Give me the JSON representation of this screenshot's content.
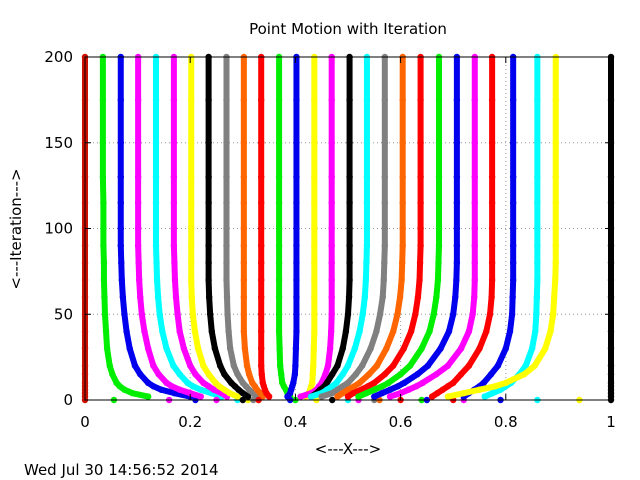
{
  "footer_timestamp": "Wed Jul 30 14:56:52 2014",
  "chart_data": {
    "type": "scatter",
    "title": "Point Motion with Iteration",
    "xlabel": "<---X--->",
    "ylabel": "<---Iteration--->",
    "xlim": [
      0,
      1
    ],
    "ylim": [
      0,
      200
    ],
    "x_ticks": [
      "0",
      "0.2",
      "0.4",
      "0.6",
      "0.8",
      "1"
    ],
    "y_ticks": [
      "0",
      "50",
      "100",
      "150",
      "200"
    ],
    "grid": true,
    "legend": "none",
    "iterations": [
      0,
      2,
      4,
      6,
      8,
      10,
      15,
      20,
      30,
      40,
      50,
      60,
      70,
      80,
      90,
      100,
      115,
      130,
      150,
      175,
      200
    ],
    "series": [
      {
        "color": "#cc1100",
        "x": [
          0.0,
          0.0,
          0.0,
          0.0,
          0.0,
          0.0,
          0.0,
          0.0,
          0.0,
          0.0,
          0.0,
          0.0,
          0.0,
          0.0,
          0.0,
          0.0,
          0.0,
          0.0,
          0.0,
          0.0,
          0.0
        ]
      },
      {
        "color": "#00ee00",
        "x": [
          0.055,
          0.12,
          0.09,
          0.075,
          0.066,
          0.06,
          0.052,
          0.047,
          0.042,
          0.04,
          0.038,
          0.037,
          0.036,
          0.036,
          0.035,
          0.035,
          0.035,
          0.034,
          0.034,
          0.034,
          0.034
        ]
      },
      {
        "color": "#0000ee",
        "x": [
          0.21,
          0.2,
          0.17,
          0.145,
          0.13,
          0.12,
          0.105,
          0.095,
          0.085,
          0.079,
          0.075,
          0.072,
          0.07,
          0.069,
          0.068,
          0.068,
          0.068,
          0.068,
          0.068,
          0.068,
          0.068
        ]
      },
      {
        "color": "#ff00ff",
        "x": [
          0.16,
          0.22,
          0.2,
          0.18,
          0.165,
          0.155,
          0.14,
          0.13,
          0.12,
          0.113,
          0.108,
          0.105,
          0.103,
          0.102,
          0.101,
          0.101,
          0.101,
          0.101,
          0.101,
          0.101,
          0.101
        ]
      },
      {
        "color": "#00ffff",
        "x": [
          0.29,
          0.26,
          0.24,
          0.22,
          0.205,
          0.195,
          0.18,
          0.168,
          0.155,
          0.147,
          0.142,
          0.139,
          0.137,
          0.136,
          0.135,
          0.135,
          0.135,
          0.135,
          0.135,
          0.135,
          0.135
        ]
      },
      {
        "color": "#ff00ff",
        "x": [
          0.25,
          0.27,
          0.26,
          0.245,
          0.235,
          0.225,
          0.21,
          0.2,
          0.188,
          0.18,
          0.176,
          0.173,
          0.171,
          0.17,
          0.169,
          0.169,
          0.169,
          0.169,
          0.169,
          0.169,
          0.169
        ]
      },
      {
        "color": "#ffff00",
        "x": [
          0.31,
          0.29,
          0.275,
          0.265,
          0.255,
          0.248,
          0.235,
          0.225,
          0.215,
          0.209,
          0.205,
          0.203,
          0.202,
          0.202,
          0.202,
          0.202,
          0.202,
          0.202,
          0.202,
          0.202,
          0.202
        ]
      },
      {
        "color": "#000000",
        "x": [
          0.3,
          0.31,
          0.3,
          0.292,
          0.285,
          0.278,
          0.265,
          0.257,
          0.247,
          0.241,
          0.238,
          0.236,
          0.235,
          0.235,
          0.235,
          0.235,
          0.235,
          0.235,
          0.235,
          0.235,
          0.235
        ]
      },
      {
        "color": "#808080",
        "x": [
          0.32,
          0.325,
          0.32,
          0.312,
          0.306,
          0.3,
          0.29,
          0.283,
          0.276,
          0.273,
          0.271,
          0.27,
          0.269,
          0.269,
          0.269,
          0.269,
          0.269,
          0.269,
          0.269,
          0.269,
          0.269
        ]
      },
      {
        "color": "#ff6600",
        "x": [
          0.33,
          0.338,
          0.333,
          0.327,
          0.323,
          0.318,
          0.312,
          0.308,
          0.304,
          0.302,
          0.302,
          0.302,
          0.302,
          0.302,
          0.302,
          0.302,
          0.302,
          0.302,
          0.302,
          0.302,
          0.302
        ]
      },
      {
        "color": "#ff0000",
        "x": [
          0.33,
          0.35,
          0.345,
          0.342,
          0.34,
          0.338,
          0.336,
          0.335,
          0.335,
          0.335,
          0.335,
          0.335,
          0.335,
          0.335,
          0.335,
          0.335,
          0.335,
          0.335,
          0.335,
          0.335,
          0.335
        ]
      },
      {
        "color": "#00ee00",
        "x": [
          0.4,
          0.39,
          0.385,
          0.382,
          0.378,
          0.375,
          0.373,
          0.371,
          0.37,
          0.369,
          0.369,
          0.369,
          0.369,
          0.369,
          0.369,
          0.369,
          0.369,
          0.369,
          0.369,
          0.369,
          0.369
        ]
      },
      {
        "color": "#0000ee",
        "x": [
          0.39,
          0.385,
          0.39,
          0.392,
          0.394,
          0.396,
          0.399,
          0.4,
          0.401,
          0.402,
          0.402,
          0.402,
          0.402,
          0.402,
          0.402,
          0.402,
          0.402,
          0.402,
          0.402,
          0.402,
          0.402
        ]
      },
      {
        "color": "#ffff00",
        "x": [
          0.44,
          0.42,
          0.425,
          0.428,
          0.43,
          0.432,
          0.433,
          0.434,
          0.435,
          0.436,
          0.436,
          0.436,
          0.436,
          0.436,
          0.436,
          0.436,
          0.436,
          0.436,
          0.436,
          0.436,
          0.436
        ]
      },
      {
        "color": "#ff00ff",
        "x": [
          0.52,
          0.41,
          0.43,
          0.44,
          0.445,
          0.45,
          0.457,
          0.462,
          0.466,
          0.468,
          0.469,
          0.469,
          0.469,
          0.469,
          0.469,
          0.469,
          0.469,
          0.469,
          0.469,
          0.469,
          0.469
        ]
      },
      {
        "color": "#000000",
        "x": [
          0.47,
          0.43,
          0.44,
          0.447,
          0.455,
          0.46,
          0.47,
          0.48,
          0.49,
          0.496,
          0.5,
          0.502,
          0.503,
          0.503,
          0.503,
          0.503,
          0.503,
          0.503,
          0.503,
          0.503,
          0.503
        ]
      },
      {
        "color": "#00ffff",
        "x": [
          0.5,
          0.43,
          0.45,
          0.46,
          0.47,
          0.478,
          0.49,
          0.5,
          0.513,
          0.522,
          0.528,
          0.532,
          0.534,
          0.535,
          0.536,
          0.536,
          0.536,
          0.536,
          0.536,
          0.536,
          0.536
        ]
      },
      {
        "color": "#808080",
        "x": [
          0.55,
          0.45,
          0.47,
          0.48,
          0.49,
          0.5,
          0.515,
          0.527,
          0.543,
          0.554,
          0.561,
          0.566,
          0.568,
          0.569,
          0.57,
          0.57,
          0.57,
          0.57,
          0.57,
          0.57,
          0.57
        ]
      },
      {
        "color": "#ff6600",
        "x": [
          0.56,
          0.48,
          0.49,
          0.5,
          0.512,
          0.522,
          0.54,
          0.555,
          0.573,
          0.586,
          0.594,
          0.599,
          0.602,
          0.603,
          0.604,
          0.604,
          0.604,
          0.604,
          0.604,
          0.604,
          0.604
        ]
      },
      {
        "color": "#ff0000",
        "x": [
          0.6,
          0.5,
          0.51,
          0.525,
          0.538,
          0.55,
          0.57,
          0.586,
          0.606,
          0.62,
          0.628,
          0.633,
          0.636,
          0.637,
          0.638,
          0.638,
          0.638,
          0.638,
          0.638,
          0.638,
          0.638
        ]
      },
      {
        "color": "#00ee00",
        "x": [
          0.64,
          0.52,
          0.535,
          0.55,
          0.565,
          0.577,
          0.6,
          0.618,
          0.64,
          0.655,
          0.663,
          0.668,
          0.671,
          0.672,
          0.673,
          0.673,
          0.673,
          0.673,
          0.673,
          0.673,
          0.673
        ]
      },
      {
        "color": "#0000ee",
        "x": [
          0.65,
          0.55,
          0.565,
          0.58,
          0.595,
          0.607,
          0.632,
          0.652,
          0.676,
          0.692,
          0.7,
          0.704,
          0.706,
          0.707,
          0.707,
          0.707,
          0.707,
          0.707,
          0.707,
          0.707,
          0.707
        ]
      },
      {
        "color": "#ff00ff",
        "x": [
          0.72,
          0.58,
          0.6,
          0.615,
          0.63,
          0.642,
          0.668,
          0.69,
          0.715,
          0.73,
          0.737,
          0.74,
          0.741,
          0.741,
          0.741,
          0.741,
          0.741,
          0.741,
          0.741,
          0.741,
          0.741
        ]
      },
      {
        "color": "#ff0000",
        "x": [
          0.7,
          0.66,
          0.67,
          0.68,
          0.69,
          0.7,
          0.715,
          0.73,
          0.75,
          0.763,
          0.77,
          0.773,
          0.774,
          0.774,
          0.774,
          0.774,
          0.774,
          0.774,
          0.774,
          0.774,
          0.774
        ]
      },
      {
        "color": "#0000ee",
        "x": [
          0.79,
          0.72,
          0.73,
          0.74,
          0.75,
          0.758,
          0.772,
          0.785,
          0.8,
          0.808,
          0.812,
          0.813,
          0.814,
          0.814,
          0.814,
          0.814,
          0.814,
          0.814,
          0.814,
          0.814,
          0.814
        ]
      },
      {
        "color": "#00ffff",
        "x": [
          0.86,
          0.76,
          0.775,
          0.79,
          0.8,
          0.81,
          0.826,
          0.838,
          0.85,
          0.856,
          0.858,
          0.859,
          0.86,
          0.86,
          0.86,
          0.86,
          0.86,
          0.86,
          0.86,
          0.86,
          0.86
        ]
      },
      {
        "color": "#ffff00",
        "x": [
          0.94,
          0.69,
          0.72,
          0.75,
          0.78,
          0.8,
          0.835,
          0.855,
          0.875,
          0.885,
          0.89,
          0.892,
          0.894,
          0.895,
          0.895,
          0.895,
          0.895,
          0.895,
          0.895,
          0.895,
          0.895
        ]
      },
      {
        "color": "#000000",
        "x": [
          1.0,
          1.0,
          1.0,
          1.0,
          1.0,
          1.0,
          1.0,
          1.0,
          1.0,
          1.0,
          1.0,
          1.0,
          1.0,
          1.0,
          1.0,
          1.0,
          1.0,
          1.0,
          1.0,
          1.0,
          1.0
        ]
      }
    ]
  }
}
